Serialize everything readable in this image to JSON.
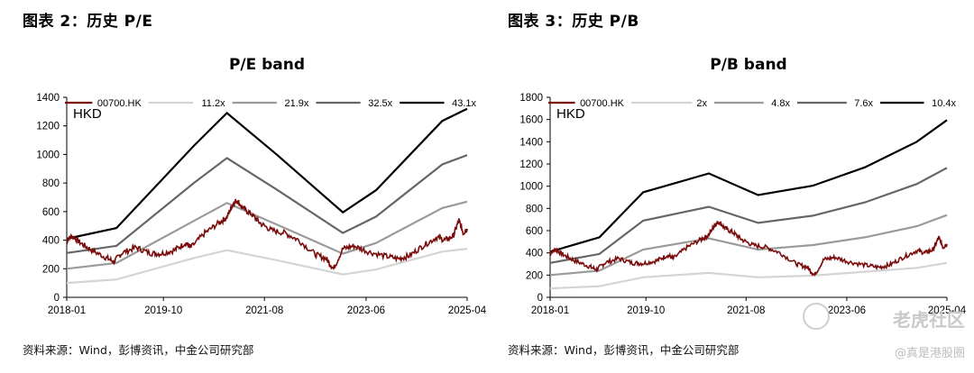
{
  "figures": [
    {
      "fig_title": "图表 2：历史 P/E",
      "source": "资料来源：Wind，彭博资讯，中金公司研究部",
      "chart_data": {
        "type": "line",
        "title": "P/E band",
        "unit_label": "HKD",
        "ylim": [
          0,
          1400
        ],
        "yticks": [
          "0",
          "200",
          "400",
          "600",
          "800",
          "1000",
          "1200",
          "1400"
        ],
        "xticks": [
          {
            "label": "2018-01",
            "t": 2018.0
          },
          {
            "label": "2019-10",
            "t": 2019.75
          },
          {
            "label": "2021-08",
            "t": 2021.58
          },
          {
            "label": "2023-06",
            "t": 2023.42
          },
          {
            "label": "2025-04",
            "t": 2025.25
          }
        ],
        "x_range": [
          2018.0,
          2025.25
        ],
        "grid": false,
        "legend_position": "top",
        "bands": [
          {
            "name": "11.2x",
            "color": "#d4d4d4",
            "points": [
              [
                2018.0,
                100
              ],
              [
                2018.9,
                125
              ],
              [
                2020.3,
                275
              ],
              [
                2020.9,
                330
              ],
              [
                2021.8,
                260
              ],
              [
                2023.0,
                160
              ],
              [
                2023.6,
                195
              ],
              [
                2024.8,
                320
              ],
              [
                2025.25,
                340
              ]
            ]
          },
          {
            "name": "21.9x",
            "color": "#9a9a9a",
            "points": [
              [
                2018.0,
                200
              ],
              [
                2018.9,
                240
              ],
              [
                2020.3,
                535
              ],
              [
                2020.9,
                660
              ],
              [
                2021.8,
                510
              ],
              [
                2023.0,
                305
              ],
              [
                2023.6,
                380
              ],
              [
                2024.8,
                625
              ],
              [
                2025.25,
                670
              ]
            ]
          },
          {
            "name": "32.5x",
            "color": "#666666",
            "points": [
              [
                2018.0,
                310
              ],
              [
                2018.9,
                360
              ],
              [
                2020.3,
                800
              ],
              [
                2020.9,
                975
              ],
              [
                2021.8,
                755
              ],
              [
                2023.0,
                450
              ],
              [
                2023.6,
                565
              ],
              [
                2024.8,
                930
              ],
              [
                2025.25,
                995
              ]
            ]
          },
          {
            "name": "43.1x",
            "color": "#000000",
            "points": [
              [
                2018.0,
                410
              ],
              [
                2018.9,
                485
              ],
              [
                2020.3,
                1060
              ],
              [
                2020.9,
                1290
              ],
              [
                2021.8,
                1000
              ],
              [
                2023.0,
                595
              ],
              [
                2023.6,
                750
              ],
              [
                2024.8,
                1235
              ],
              [
                2025.25,
                1320
              ]
            ]
          }
        ],
        "price": {
          "name": "00700.HK",
          "color": "#7a0c0c",
          "points": [
            [
              2018.0,
              400
            ],
            [
              2018.1,
              430
            ],
            [
              2018.25,
              380
            ],
            [
              2018.45,
              330
            ],
            [
              2018.7,
              280
            ],
            [
              2018.85,
              250
            ],
            [
              2019.0,
              310
            ],
            [
              2019.25,
              350
            ],
            [
              2019.5,
              310
            ],
            [
              2019.7,
              305
            ],
            [
              2019.95,
              330
            ],
            [
              2020.15,
              380
            ],
            [
              2020.25,
              350
            ],
            [
              2020.5,
              450
            ],
            [
              2020.75,
              520
            ],
            [
              2020.9,
              560
            ],
            [
              2021.0,
              650
            ],
            [
              2021.08,
              680
            ],
            [
              2021.2,
              620
            ],
            [
              2021.35,
              580
            ],
            [
              2021.5,
              520
            ],
            [
              2021.7,
              470
            ],
            [
              2021.95,
              450
            ],
            [
              2022.2,
              400
            ],
            [
              2022.5,
              300
            ],
            [
              2022.7,
              270
            ],
            [
              2022.83,
              200
            ],
            [
              2023.0,
              340
            ],
            [
              2023.2,
              360
            ],
            [
              2023.45,
              320
            ],
            [
              2023.75,
              290
            ],
            [
              2024.0,
              270
            ],
            [
              2024.2,
              290
            ],
            [
              2024.45,
              360
            ],
            [
              2024.7,
              420
            ],
            [
              2024.85,
              400
            ],
            [
              2025.0,
              430
            ],
            [
              2025.1,
              540
            ],
            [
              2025.18,
              450
            ],
            [
              2025.25,
              480
            ]
          ]
        }
      }
    },
    {
      "fig_title": "图表 3：历史 P/B",
      "source": "资料来源：Wind，彭博资讯，中金公司研究部",
      "chart_data": {
        "type": "line",
        "title": "P/B band",
        "unit_label": "HKD",
        "ylim": [
          0,
          1800
        ],
        "yticks": [
          "0",
          "200",
          "400",
          "600",
          "800",
          "1000",
          "1200",
          "1400",
          "1600",
          "1800"
        ],
        "xticks": [
          {
            "label": "2018-01",
            "t": 2018.0
          },
          {
            "label": "2019-10",
            "t": 2019.75
          },
          {
            "label": "2021-08",
            "t": 2021.58
          },
          {
            "label": "2023-06",
            "t": 2023.42
          },
          {
            "label": "2025-04",
            "t": 2025.25
          }
        ],
        "x_range": [
          2018.0,
          2025.25
        ],
        "grid": false,
        "legend_position": "top",
        "bands": [
          {
            "name": "2x",
            "color": "#d4d4d4",
            "points": [
              [
                2018.0,
                80
              ],
              [
                2018.9,
                100
              ],
              [
                2019.7,
                180
              ],
              [
                2020.9,
                220
              ],
              [
                2021.8,
                180
              ],
              [
                2022.8,
                195
              ],
              [
                2023.75,
                230
              ],
              [
                2024.7,
                265
              ],
              [
                2025.25,
                310
              ]
            ]
          },
          {
            "name": "4.8x",
            "color": "#9a9a9a",
            "points": [
              [
                2018.0,
                200
              ],
              [
                2018.9,
                240
              ],
              [
                2019.7,
                430
              ],
              [
                2020.9,
                530
              ],
              [
                2021.8,
                430
              ],
              [
                2022.8,
                470
              ],
              [
                2023.75,
                540
              ],
              [
                2024.7,
                640
              ],
              [
                2025.25,
                740
              ]
            ]
          },
          {
            "name": "7.6x",
            "color": "#666666",
            "points": [
              [
                2018.0,
                310
              ],
              [
                2018.9,
                390
              ],
              [
                2019.7,
                690
              ],
              [
                2020.9,
                815
              ],
              [
                2021.8,
                670
              ],
              [
                2022.8,
                735
              ],
              [
                2023.75,
                855
              ],
              [
                2024.7,
                1020
              ],
              [
                2025.25,
                1165
              ]
            ]
          },
          {
            "name": "10.4x",
            "color": "#000000",
            "points": [
              [
                2018.0,
                410
              ],
              [
                2018.9,
                540
              ],
              [
                2019.7,
                945
              ],
              [
                2020.9,
                1115
              ],
              [
                2021.8,
                920
              ],
              [
                2022.8,
                1005
              ],
              [
                2023.75,
                1170
              ],
              [
                2024.7,
                1400
              ],
              [
                2025.25,
                1595
              ]
            ]
          }
        ],
        "price": {
          "name": "00700.HK",
          "color": "#7a0c0c",
          "points": [
            [
              2018.0,
              400
            ],
            [
              2018.1,
              430
            ],
            [
              2018.25,
              380
            ],
            [
              2018.45,
              330
            ],
            [
              2018.7,
              280
            ],
            [
              2018.85,
              250
            ],
            [
              2019.0,
              310
            ],
            [
              2019.25,
              350
            ],
            [
              2019.5,
              310
            ],
            [
              2019.7,
              305
            ],
            [
              2019.95,
              330
            ],
            [
              2020.15,
              380
            ],
            [
              2020.25,
              350
            ],
            [
              2020.5,
              450
            ],
            [
              2020.75,
              520
            ],
            [
              2020.9,
              560
            ],
            [
              2021.0,
              650
            ],
            [
              2021.08,
              680
            ],
            [
              2021.2,
              620
            ],
            [
              2021.35,
              580
            ],
            [
              2021.5,
              520
            ],
            [
              2021.7,
              470
            ],
            [
              2021.95,
              450
            ],
            [
              2022.2,
              400
            ],
            [
              2022.5,
              300
            ],
            [
              2022.7,
              270
            ],
            [
              2022.83,
              200
            ],
            [
              2023.0,
              340
            ],
            [
              2023.2,
              360
            ],
            [
              2023.45,
              320
            ],
            [
              2023.75,
              290
            ],
            [
              2024.0,
              270
            ],
            [
              2024.2,
              290
            ],
            [
              2024.45,
              360
            ],
            [
              2024.7,
              420
            ],
            [
              2024.85,
              400
            ],
            [
              2025.0,
              430
            ],
            [
              2025.1,
              540
            ],
            [
              2025.18,
              450
            ],
            [
              2025.25,
              480
            ]
          ]
        }
      }
    }
  ],
  "watermark": {
    "logo_text": "老虎社区",
    "handle": "@真是港股圈"
  }
}
